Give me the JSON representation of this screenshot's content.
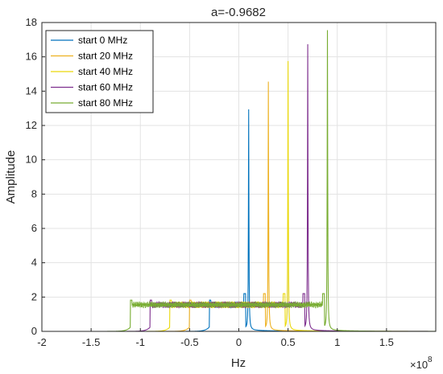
{
  "chart_data": {
    "type": "line",
    "title": "a=-0.9682",
    "xlabel": "Hz",
    "ylabel": "Amplitude",
    "x_exponent_label": "×10",
    "x_exponent_power": "8",
    "x_scale": 100000000,
    "xlim": [
      -2,
      2
    ],
    "ylim": [
      0,
      18
    ],
    "xticks": [
      -2,
      -1.5,
      -1,
      -0.5,
      0,
      0.5,
      1,
      1.5
    ],
    "xtick_labels": [
      "-2",
      "-1.5",
      "-1",
      "-0.5",
      "0",
      "0.5",
      "1",
      "1.5"
    ],
    "yticks": [
      0,
      2,
      4,
      6,
      8,
      10,
      12,
      14,
      16,
      18
    ],
    "ytick_labels": [
      "0",
      "2",
      "4",
      "6",
      "8",
      "10",
      "12",
      "14",
      "16",
      "18"
    ],
    "grid": true,
    "legend_position": "top-left",
    "series": [
      {
        "name": "start 0 MHz",
        "color": "#0072BD",
        "peak_x": 0.1,
        "peak_y": 12.8,
        "band": [
          -0.3,
          0.07
        ]
      },
      {
        "name": "start 20 MHz",
        "color": "#EDB120",
        "peak_x": 0.3,
        "peak_y": 14.5,
        "band": [
          -0.5,
          0.27
        ]
      },
      {
        "name": "start 40 MHz",
        "color": "#EAD80B",
        "peak_x": 0.5,
        "peak_y": 15.7,
        "band": [
          -0.7,
          0.47
        ]
      },
      {
        "name": "start 60 MHz",
        "color": "#7E2F8E",
        "peak_x": 0.7,
        "peak_y": 16.6,
        "band": [
          -0.9,
          0.67
        ]
      },
      {
        "name": "start 80 MHz",
        "color": "#77AC30",
        "peak_x": 0.9,
        "peak_y": 17.5,
        "band": [
          -1.1,
          0.87
        ]
      }
    ]
  }
}
